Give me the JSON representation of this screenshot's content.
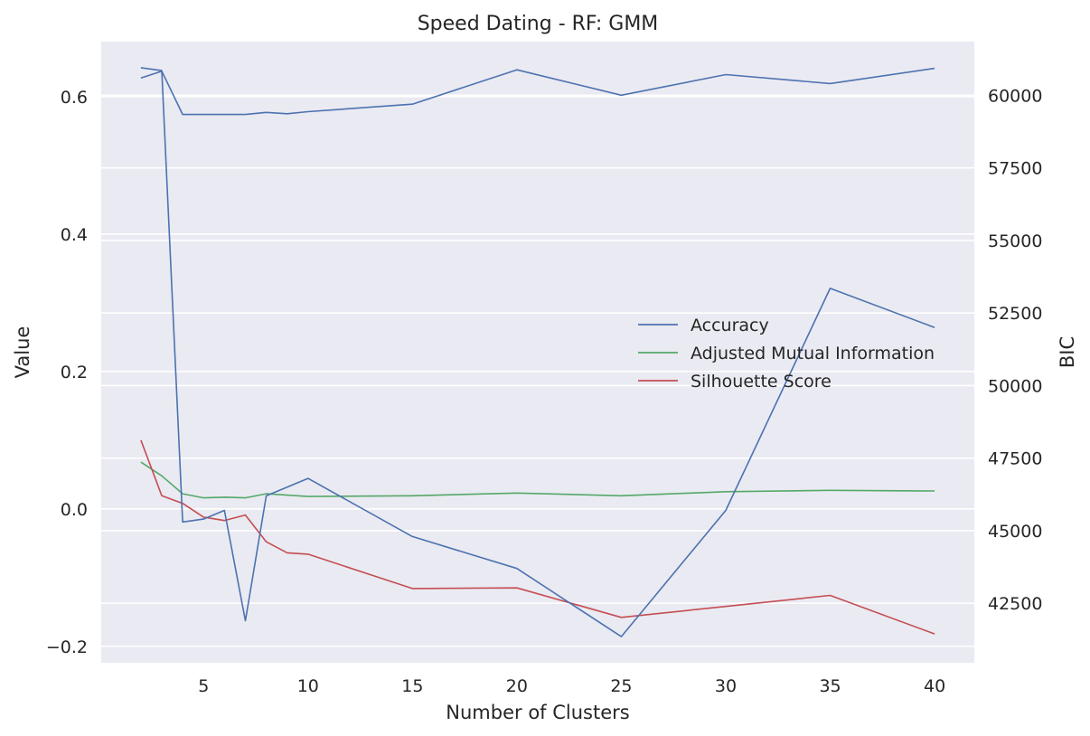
{
  "chart_data": {
    "type": "line",
    "title": "Speed Dating - RF: GMM",
    "xlabel": "Number of Clusters",
    "ylabel": "Value",
    "y2label": "BIC",
    "x": [
      2,
      3,
      4,
      5,
      6,
      7,
      8,
      9,
      10,
      15,
      20,
      25,
      30,
      35,
      40
    ],
    "xticks": [
      5,
      10,
      15,
      20,
      25,
      30,
      35,
      40
    ],
    "xlim": [
      0.1,
      41.9
    ],
    "ylim": [
      -0.224,
      0.68
    ],
    "yticks": [
      0.6,
      0.4,
      0.2,
      0.0,
      -0.2
    ],
    "ytick_labels": [
      "0.6",
      "0.4",
      "0.2",
      "0.0",
      "−0.2"
    ],
    "y2lim": [
      40450,
      61850
    ],
    "y2ticks": [
      60000,
      57500,
      55000,
      52500,
      50000,
      47500,
      45000,
      42500
    ],
    "y2tick_labels": [
      "60000",
      "57500",
      "55000",
      "52500",
      "50000",
      "47500",
      "45000",
      "42500"
    ],
    "grid": true,
    "legend_position": "center-right",
    "series": [
      {
        "name": "Accuracy",
        "axis": "left",
        "color": "#4c72b0",
        "values": [
          0.627,
          0.637,
          0.574,
          0.574,
          0.574,
          0.574,
          0.577,
          0.575,
          0.578,
          0.589,
          0.639,
          0.602,
          0.632,
          0.619,
          0.641
        ]
      },
      {
        "name": "Adjusted Mutual Information",
        "axis": "left",
        "color": "#55a868",
        "values": [
          0.068,
          0.048,
          0.022,
          0.016,
          0.017,
          0.016,
          0.022,
          0.02,
          0.018,
          0.019,
          0.023,
          0.019,
          0.025,
          0.027,
          0.026
        ]
      },
      {
        "name": "Silhouette Score",
        "axis": "left",
        "color": "#c44e52",
        "values": [
          0.1,
          0.019,
          0.008,
          -0.012,
          -0.017,
          -0.009,
          -0.048,
          -0.064,
          -0.066,
          -0.116,
          -0.115,
          -0.158,
          -0.142,
          -0.126,
          -0.182
        ]
      },
      {
        "name": "BIC",
        "axis": "right",
        "color": "#4c72b0",
        "values": [
          60950,
          60850,
          45300,
          45400,
          45700,
          41900,
          46200,
          46500,
          46800,
          44800,
          43700,
          41350,
          45700,
          53350,
          52000
        ]
      }
    ]
  }
}
